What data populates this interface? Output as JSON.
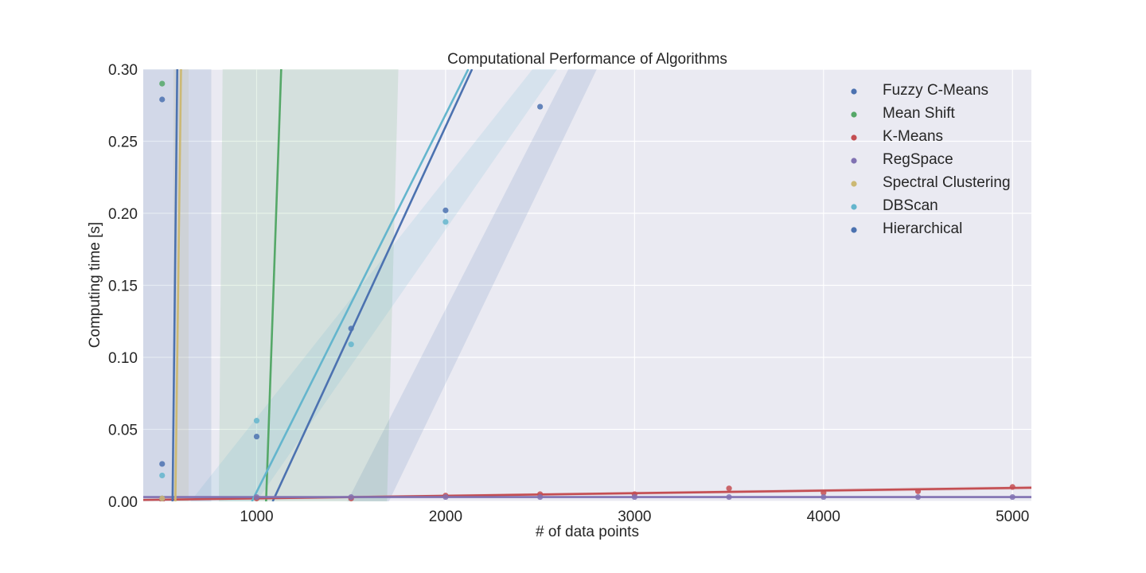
{
  "chart_data": {
    "type": "scatter",
    "title": "Computational Performance of Algorithms",
    "xlabel": "# of data points",
    "ylabel": "Computing time [s]",
    "xlim": [
      400,
      5100
    ],
    "ylim": [
      0,
      0.3
    ],
    "xticks": [
      1000,
      2000,
      3000,
      4000,
      5000
    ],
    "xtick_labels": [
      "1000",
      "2000",
      "3000",
      "4000",
      "5000"
    ],
    "yticks": [
      0,
      0.05,
      0.1,
      0.15,
      0.2,
      0.25,
      0.3
    ],
    "ytick_labels": [
      "0.00",
      "0.05",
      "0.10",
      "0.15",
      "0.20",
      "0.25",
      "0.30"
    ],
    "grid": true,
    "legend_position": "top-right",
    "series": [
      {
        "name": "Fuzzy C-Means",
        "color": "#4C72B0",
        "points": [
          [
            500,
            0.279
          ],
          [
            500,
            0.026
          ],
          [
            1000,
            0.045
          ],
          [
            1500,
            0.12
          ],
          [
            2000,
            0.202
          ],
          [
            2500,
            0.274
          ]
        ],
        "fit": [
          [
            1085,
            0
          ],
          [
            2140,
            0.3
          ]
        ],
        "band": [
          [
            1480,
            0
          ],
          [
            2650,
            0.3
          ],
          [
            2800,
            0.3
          ],
          [
            1700,
            0
          ]
        ]
      },
      {
        "name": "Mean Shift",
        "color": "#55A868",
        "points": [
          [
            500,
            0.29
          ],
          [
            500,
            0.002
          ]
        ],
        "fit": [
          [
            1050,
            0
          ],
          [
            1130,
            0.3
          ]
        ],
        "band": [
          [
            800,
            0
          ],
          [
            820,
            0.3
          ],
          [
            1750,
            0.3
          ],
          [
            1690,
            0
          ]
        ]
      },
      {
        "name": "K-Means",
        "color": "#C44E52",
        "points": [
          [
            500,
            0.001
          ],
          [
            1000,
            0.002
          ],
          [
            1500,
            0.002
          ],
          [
            2000,
            0.004
          ],
          [
            2500,
            0.005
          ],
          [
            3000,
            0.005
          ],
          [
            3500,
            0.009
          ],
          [
            4000,
            0.006
          ],
          [
            4500,
            0.007
          ],
          [
            5000,
            0.01
          ]
        ],
        "fit": [
          [
            400,
            0.001
          ],
          [
            5100,
            0.0095
          ]
        ],
        "band": [
          [
            400,
            0.0002
          ],
          [
            5100,
            0.0082
          ],
          [
            5100,
            0.0108
          ],
          [
            400,
            0.0018
          ]
        ]
      },
      {
        "name": "RegSpace",
        "color": "#8172B2",
        "points": [
          [
            500,
            0.002
          ],
          [
            1000,
            0.003
          ],
          [
            1500,
            0.003
          ],
          [
            2000,
            0.003
          ],
          [
            2500,
            0.003
          ],
          [
            3000,
            0.003
          ],
          [
            3500,
            0.003
          ],
          [
            4000,
            0.003
          ],
          [
            4500,
            0.003
          ],
          [
            5000,
            0.003
          ]
        ],
        "fit": [
          [
            400,
            0.003
          ],
          [
            5100,
            0.003
          ]
        ],
        "band": [
          [
            400,
            0.0025
          ],
          [
            5100,
            0.0025
          ],
          [
            5100,
            0.0035
          ],
          [
            400,
            0.0035
          ]
        ]
      },
      {
        "name": "Spectral Clustering",
        "color": "#CCB974",
        "points": [
          [
            500,
            0.002
          ]
        ],
        "fit": [
          [
            570,
            0
          ],
          [
            600,
            0.3
          ]
        ],
        "band": [
          [
            560,
            0
          ],
          [
            560,
            0.3
          ],
          [
            640,
            0.3
          ],
          [
            640,
            0
          ]
        ]
      },
      {
        "name": "DBScan",
        "color": "#64B5CD",
        "points": [
          [
            500,
            0.018
          ],
          [
            1000,
            0.056
          ],
          [
            1500,
            0.109
          ],
          [
            2000,
            0.194
          ]
        ],
        "fit": [
          [
            975,
            0
          ],
          [
            2120,
            0.3
          ]
        ],
        "band": [
          [
            650,
            0
          ],
          [
            2460,
            0.3
          ],
          [
            2590,
            0.3
          ],
          [
            1000,
            0
          ]
        ]
      },
      {
        "name": "Hierarchical",
        "color": "#4C72B0",
        "points": [],
        "fit": [
          [
            555,
            0
          ],
          [
            580,
            0.3
          ]
        ],
        "band": [
          [
            400,
            0
          ],
          [
            400,
            0.3
          ],
          [
            760,
            0.3
          ],
          [
            760,
            0
          ]
        ]
      }
    ]
  },
  "style": {
    "plot_background": "#EAEAF2",
    "grid_color": "#FFFFFF",
    "text_color": "#262626"
  }
}
